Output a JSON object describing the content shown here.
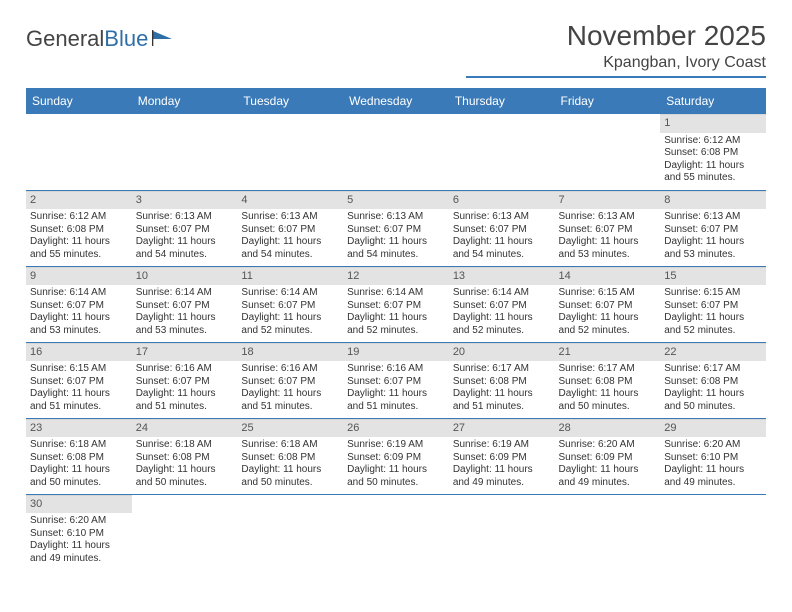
{
  "logo": {
    "text1": "General",
    "text2": "Blue"
  },
  "title": "November 2025",
  "location": "Kpangban, Ivory Coast",
  "colors": {
    "header_bg": "#3a7ab8",
    "header_text": "#ffffff",
    "daynum_bg": "#e3e3e3",
    "text": "#333333",
    "rule": "#3a7ab8"
  },
  "weekdays": [
    "Sunday",
    "Monday",
    "Tuesday",
    "Wednesday",
    "Thursday",
    "Friday",
    "Saturday"
  ],
  "weeks": [
    [
      null,
      null,
      null,
      null,
      null,
      null,
      {
        "n": "1",
        "sr": "Sunrise: 6:12 AM",
        "ss": "Sunset: 6:08 PM",
        "dl": "Daylight: 11 hours and 55 minutes."
      }
    ],
    [
      {
        "n": "2",
        "sr": "Sunrise: 6:12 AM",
        "ss": "Sunset: 6:08 PM",
        "dl": "Daylight: 11 hours and 55 minutes."
      },
      {
        "n": "3",
        "sr": "Sunrise: 6:13 AM",
        "ss": "Sunset: 6:07 PM",
        "dl": "Daylight: 11 hours and 54 minutes."
      },
      {
        "n": "4",
        "sr": "Sunrise: 6:13 AM",
        "ss": "Sunset: 6:07 PM",
        "dl": "Daylight: 11 hours and 54 minutes."
      },
      {
        "n": "5",
        "sr": "Sunrise: 6:13 AM",
        "ss": "Sunset: 6:07 PM",
        "dl": "Daylight: 11 hours and 54 minutes."
      },
      {
        "n": "6",
        "sr": "Sunrise: 6:13 AM",
        "ss": "Sunset: 6:07 PM",
        "dl": "Daylight: 11 hours and 54 minutes."
      },
      {
        "n": "7",
        "sr": "Sunrise: 6:13 AM",
        "ss": "Sunset: 6:07 PM",
        "dl": "Daylight: 11 hours and 53 minutes."
      },
      {
        "n": "8",
        "sr": "Sunrise: 6:13 AM",
        "ss": "Sunset: 6:07 PM",
        "dl": "Daylight: 11 hours and 53 minutes."
      }
    ],
    [
      {
        "n": "9",
        "sr": "Sunrise: 6:14 AM",
        "ss": "Sunset: 6:07 PM",
        "dl": "Daylight: 11 hours and 53 minutes."
      },
      {
        "n": "10",
        "sr": "Sunrise: 6:14 AM",
        "ss": "Sunset: 6:07 PM",
        "dl": "Daylight: 11 hours and 53 minutes."
      },
      {
        "n": "11",
        "sr": "Sunrise: 6:14 AM",
        "ss": "Sunset: 6:07 PM",
        "dl": "Daylight: 11 hours and 52 minutes."
      },
      {
        "n": "12",
        "sr": "Sunrise: 6:14 AM",
        "ss": "Sunset: 6:07 PM",
        "dl": "Daylight: 11 hours and 52 minutes."
      },
      {
        "n": "13",
        "sr": "Sunrise: 6:14 AM",
        "ss": "Sunset: 6:07 PM",
        "dl": "Daylight: 11 hours and 52 minutes."
      },
      {
        "n": "14",
        "sr": "Sunrise: 6:15 AM",
        "ss": "Sunset: 6:07 PM",
        "dl": "Daylight: 11 hours and 52 minutes."
      },
      {
        "n": "15",
        "sr": "Sunrise: 6:15 AM",
        "ss": "Sunset: 6:07 PM",
        "dl": "Daylight: 11 hours and 52 minutes."
      }
    ],
    [
      {
        "n": "16",
        "sr": "Sunrise: 6:15 AM",
        "ss": "Sunset: 6:07 PM",
        "dl": "Daylight: 11 hours and 51 minutes."
      },
      {
        "n": "17",
        "sr": "Sunrise: 6:16 AM",
        "ss": "Sunset: 6:07 PM",
        "dl": "Daylight: 11 hours and 51 minutes."
      },
      {
        "n": "18",
        "sr": "Sunrise: 6:16 AM",
        "ss": "Sunset: 6:07 PM",
        "dl": "Daylight: 11 hours and 51 minutes."
      },
      {
        "n": "19",
        "sr": "Sunrise: 6:16 AM",
        "ss": "Sunset: 6:07 PM",
        "dl": "Daylight: 11 hours and 51 minutes."
      },
      {
        "n": "20",
        "sr": "Sunrise: 6:17 AM",
        "ss": "Sunset: 6:08 PM",
        "dl": "Daylight: 11 hours and 51 minutes."
      },
      {
        "n": "21",
        "sr": "Sunrise: 6:17 AM",
        "ss": "Sunset: 6:08 PM",
        "dl": "Daylight: 11 hours and 50 minutes."
      },
      {
        "n": "22",
        "sr": "Sunrise: 6:17 AM",
        "ss": "Sunset: 6:08 PM",
        "dl": "Daylight: 11 hours and 50 minutes."
      }
    ],
    [
      {
        "n": "23",
        "sr": "Sunrise: 6:18 AM",
        "ss": "Sunset: 6:08 PM",
        "dl": "Daylight: 11 hours and 50 minutes."
      },
      {
        "n": "24",
        "sr": "Sunrise: 6:18 AM",
        "ss": "Sunset: 6:08 PM",
        "dl": "Daylight: 11 hours and 50 minutes."
      },
      {
        "n": "25",
        "sr": "Sunrise: 6:18 AM",
        "ss": "Sunset: 6:08 PM",
        "dl": "Daylight: 11 hours and 50 minutes."
      },
      {
        "n": "26",
        "sr": "Sunrise: 6:19 AM",
        "ss": "Sunset: 6:09 PM",
        "dl": "Daylight: 11 hours and 50 minutes."
      },
      {
        "n": "27",
        "sr": "Sunrise: 6:19 AM",
        "ss": "Sunset: 6:09 PM",
        "dl": "Daylight: 11 hours and 49 minutes."
      },
      {
        "n": "28",
        "sr": "Sunrise: 6:20 AM",
        "ss": "Sunset: 6:09 PM",
        "dl": "Daylight: 11 hours and 49 minutes."
      },
      {
        "n": "29",
        "sr": "Sunrise: 6:20 AM",
        "ss": "Sunset: 6:10 PM",
        "dl": "Daylight: 11 hours and 49 minutes."
      }
    ],
    [
      {
        "n": "30",
        "sr": "Sunrise: 6:20 AM",
        "ss": "Sunset: 6:10 PM",
        "dl": "Daylight: 11 hours and 49 minutes."
      },
      null,
      null,
      null,
      null,
      null,
      null
    ]
  ]
}
